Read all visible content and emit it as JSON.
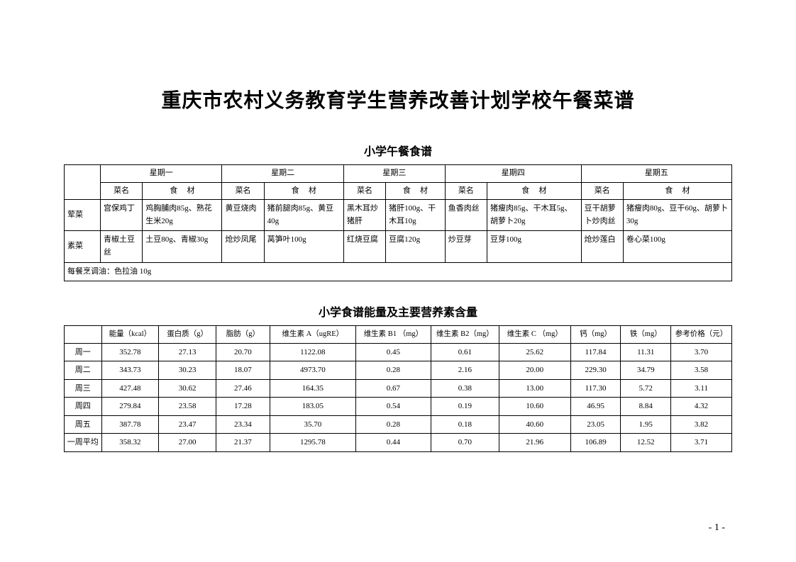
{
  "main_title": "重庆市农村义务教育学生营养改善计划学校午餐菜谱",
  "menu_section": {
    "title": "小学午餐食谱",
    "day_headers": [
      "星期一",
      "星期二",
      "星期三",
      "星期四",
      "星期五"
    ],
    "sub_headers": {
      "dish": "菜名",
      "ingredients": "食　材"
    },
    "rows": [
      {
        "label": "荤菜",
        "days": [
          {
            "dish": "宫保鸡丁",
            "ing": "鸡胸脯肉85g、熟花生米20g"
          },
          {
            "dish": "黄豆烧肉",
            "ing": "猪前腿肉85g、黄豆40g"
          },
          {
            "dish": "黑木耳炒猪肝",
            "ing": "猪肝100g、干木耳10g"
          },
          {
            "dish": "鱼香肉丝",
            "ing": "猪瘦肉85g、干木耳5g、胡萝卜20g"
          },
          {
            "dish": "豆干胡萝卜炒肉丝",
            "ing": "猪瘦肉80g、豆干60g、胡萝卜30g"
          }
        ]
      },
      {
        "label": "素菜",
        "days": [
          {
            "dish": "青椒土豆丝",
            "ing": "土豆80g、青椒30g"
          },
          {
            "dish": "炝炒凤尾",
            "ing": "莴笋叶100g"
          },
          {
            "dish": "红烧豆腐",
            "ing": "豆腐120g"
          },
          {
            "dish": "炒豆芽",
            "ing": "豆芽100g"
          },
          {
            "dish": "炝炒莲白",
            "ing": "卷心菜100g"
          }
        ]
      }
    ],
    "oil_note": "每餐烹调油：色拉油 10g"
  },
  "nutrition_section": {
    "title": "小学食谱能量及主要营养素含量",
    "headers": [
      "",
      "能量（kcal）",
      "蛋白质（g）",
      "脂肪（g）",
      "维生素 A（ugRE）",
      "维生素 B1 （mg）",
      "维生素 B2（mg）",
      "维生素 C （mg）",
      "钙（mg）",
      "铁（mg）",
      "参考价格（元）"
    ],
    "rows": [
      {
        "label": "周一",
        "vals": [
          "352.78",
          "27.13",
          "20.70",
          "1122.08",
          "0.45",
          "0.61",
          "25.62",
          "117.84",
          "11.31",
          "3.70"
        ]
      },
      {
        "label": "周二",
        "vals": [
          "343.73",
          "30.23",
          "18.07",
          "4973.70",
          "0.28",
          "2.16",
          "20.00",
          "229.30",
          "34.79",
          "3.58"
        ]
      },
      {
        "label": "周三",
        "vals": [
          "427.48",
          "30.62",
          "27.46",
          "164.35",
          "0.67",
          "0.38",
          "13.00",
          "117.30",
          "5.72",
          "3.11"
        ]
      },
      {
        "label": "周四",
        "vals": [
          "279.84",
          "23.58",
          "17.28",
          "183.05",
          "0.54",
          "0.19",
          "10.60",
          "46.95",
          "8.84",
          "4.32"
        ]
      },
      {
        "label": "周五",
        "vals": [
          "387.78",
          "23.47",
          "23.34",
          "35.70",
          "0.28",
          "0.18",
          "40.60",
          "23.05",
          "1.95",
          "3.82"
        ]
      },
      {
        "label": "一周平均",
        "vals": [
          "358.32",
          "27.00",
          "21.37",
          "1295.78",
          "0.44",
          "0.70",
          "21.96",
          "106.89",
          "12.52",
          "3.71"
        ]
      }
    ]
  },
  "page_number": "- 1 -"
}
